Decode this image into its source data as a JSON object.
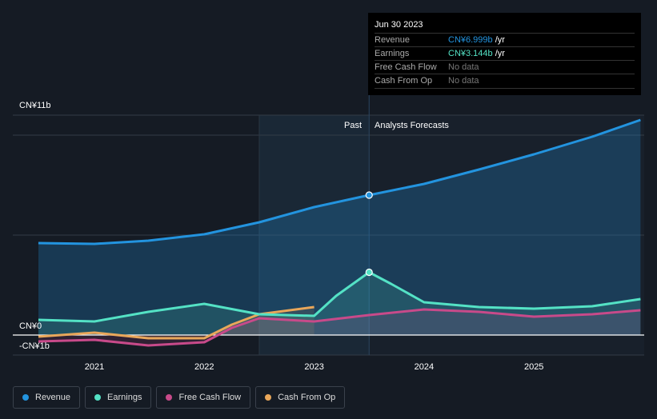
{
  "tooltip": {
    "date": "Jun 30 2023",
    "rows": [
      {
        "label": "Revenue",
        "value": "CN¥6.999b",
        "unit": " /yr",
        "color": "#2394df"
      },
      {
        "label": "Earnings",
        "value": "CN¥3.144b",
        "unit": " /yr",
        "color": "#54e2c5"
      },
      {
        "label": "Free Cash Flow",
        "value": "No data",
        "unit": "",
        "color": "#777"
      },
      {
        "label": "Cash From Op",
        "value": "No data",
        "unit": "",
        "color": "#777"
      }
    ]
  },
  "chart_data": {
    "type": "line",
    "title": "",
    "past_label": "Past",
    "forecast_label": "Analysts Forecasts",
    "ylim": [
      -1,
      11
    ],
    "y_tick_labels": {
      "top": "CN¥11b",
      "zero": "CN¥0",
      "bottom": "-CN¥1b"
    },
    "x_ticks": [
      2021,
      2022,
      2023,
      2024,
      2025
    ],
    "xlim": [
      2020.49,
      2025.97
    ],
    "past_region": [
      2022.5,
      2023.5
    ],
    "series": [
      {
        "name": "Revenue",
        "color": "#2394df",
        "x": [
          2020.49,
          2021,
          2021.49,
          2022,
          2022.5,
          2023,
          2023.5,
          2024,
          2024.5,
          2025,
          2025.53,
          2025.97
        ],
        "values": [
          4.6,
          4.56,
          4.72,
          5.04,
          5.64,
          6.4,
          7.0,
          7.56,
          8.28,
          9.04,
          9.92,
          10.76
        ]
      },
      {
        "name": "Earnings",
        "color": "#54e2c5",
        "x": [
          2020.49,
          2021,
          2021.49,
          2022,
          2022.5,
          2023,
          2023.2,
          2023.5,
          2023.7,
          2024,
          2024.5,
          2025,
          2025.53,
          2025.97
        ],
        "values": [
          0.76,
          0.68,
          1.16,
          1.56,
          1.04,
          0.96,
          1.96,
          3.14,
          2.56,
          1.64,
          1.4,
          1.32,
          1.44,
          1.8
        ]
      },
      {
        "name": "Free Cash Flow",
        "color": "#c84a8a",
        "x": [
          2020.49,
          2021,
          2021.49,
          2022,
          2022.25,
          2022.5,
          2023,
          2023.5,
          2024,
          2024.5,
          2025,
          2025.53,
          2025.97
        ],
        "values": [
          -0.32,
          -0.24,
          -0.52,
          -0.36,
          0.36,
          0.84,
          0.68,
          1.0,
          1.28,
          1.16,
          0.92,
          1.04,
          1.24
        ]
      },
      {
        "name": "Cash From Op",
        "color": "#e9a75a",
        "x": [
          2020.49,
          2021,
          2021.49,
          2022,
          2022.25,
          2022.5,
          2023
        ],
        "values": [
          -0.08,
          0.12,
          -0.16,
          -0.16,
          0.52,
          1.04,
          1.4
        ]
      }
    ],
    "highlight": {
      "x": 2023.5,
      "revenue": 7.0,
      "earnings": 3.14
    }
  }
}
